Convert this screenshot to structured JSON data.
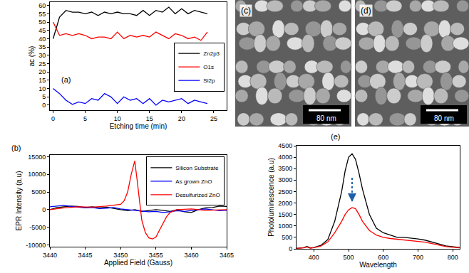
{
  "chart_data": [
    {
      "type": "line",
      "label": "(a)",
      "x_label": "Etching time (min)",
      "y_label": "ac (%)",
      "xlim": [
        -0.5,
        27
      ],
      "xticks": [
        0,
        5,
        10,
        15,
        20,
        25
      ],
      "ylim": [
        -3,
        62
      ],
      "yticks": [
        0,
        5,
        10,
        15,
        20,
        25,
        30,
        35,
        40,
        45,
        50,
        55,
        60
      ],
      "grid": false,
      "legend": "right",
      "x": [
        0,
        1,
        2,
        3,
        4,
        5,
        6,
        7,
        8,
        9,
        10,
        11,
        12,
        13,
        14,
        15,
        16,
        17,
        18,
        19,
        20,
        21,
        22,
        23,
        24
      ],
      "series": [
        {
          "name": "Zn2p3",
          "color": "#000000",
          "values": [
            40,
            53,
            57,
            56,
            56,
            55,
            56,
            54,
            56,
            55,
            56,
            55,
            55,
            54,
            57,
            54,
            57,
            56,
            59,
            55,
            58,
            55,
            57,
            56,
            55
          ]
        },
        {
          "name": "O1s",
          "color": "#ff0000",
          "values": [
            50,
            42,
            43,
            42,
            43,
            42,
            40,
            41,
            41,
            40,
            44,
            40,
            42,
            41,
            42,
            41,
            44,
            42,
            40,
            43,
            42,
            40,
            41,
            39,
            44
          ]
        },
        {
          "name": "Si2p",
          "color": "#0000ff",
          "values": [
            10,
            7,
            3,
            0.5,
            2,
            1,
            4,
            3,
            7,
            5,
            1,
            5,
            3,
            4,
            1,
            4,
            0,
            3,
            2,
            3,
            4,
            1,
            3,
            2,
            1
          ]
        }
      ]
    },
    {
      "type": "line",
      "label": "(b)",
      "x_label": "Applied Field (Gauss)",
      "y_label": "EPR Intensity (a.u)",
      "xlim": [
        3440,
        3465
      ],
      "xticks": [
        3440,
        3445,
        3450,
        3455,
        3460,
        3465
      ],
      "ylim": [
        -10500,
        15500
      ],
      "yticks": [
        -10000,
        -5000,
        0,
        5000,
        10000,
        15000
      ],
      "grid": false,
      "legend": "upper right",
      "series": [
        {
          "name": "Silicon Substrate",
          "color": "#000000",
          "x": [
            3440,
            3441,
            3442,
            3443,
            3444,
            3445,
            3446,
            3447,
            3448,
            3449,
            3450,
            3451,
            3452,
            3453,
            3454,
            3455,
            3456,
            3457,
            3458,
            3459,
            3460,
            3461,
            3462,
            3463,
            3464,
            3465
          ],
          "values": [
            0,
            600,
            800,
            1000,
            900,
            600,
            800,
            500,
            700,
            300,
            0,
            -300,
            0,
            -500,
            -300,
            0,
            -200,
            -500,
            0,
            -600,
            -800,
            0,
            500,
            600,
            1000,
            900
          ]
        },
        {
          "name": "As grown ZnO",
          "color": "#0000ff",
          "x": [
            3440,
            3441,
            3442,
            3443,
            3444,
            3445,
            3446,
            3447,
            3448,
            3449,
            3450,
            3451,
            3452,
            3453,
            3454,
            3455,
            3456,
            3457,
            3458,
            3459,
            3460,
            3461,
            3462,
            3463,
            3464,
            3465
          ],
          "values": [
            800,
            1000,
            1200,
            900,
            700,
            500,
            600,
            300,
            400,
            600,
            200,
            0,
            -200,
            -400,
            -600,
            -500,
            -800,
            -600,
            -300,
            -500,
            -200,
            0,
            200,
            0,
            -300,
            -200
          ]
        },
        {
          "name": "Desulfurized ZnO",
          "color": "#ff0000",
          "x": [
            3440,
            3442,
            3444,
            3446,
            3448,
            3449,
            3450,
            3450.5,
            3451,
            3451.5,
            3452,
            3452.3,
            3452.7,
            3453,
            3453.5,
            3454,
            3454.5,
            3455,
            3455.5,
            3456,
            3456.5,
            3457,
            3458,
            3460,
            3462,
            3465
          ],
          "values": [
            0,
            500,
            800,
            700,
            1000,
            1200,
            1500,
            2500,
            5000,
            10000,
            13800,
            9000,
            2000,
            -3000,
            -6500,
            -8000,
            -8300,
            -7800,
            -5800,
            -3800,
            -2000,
            -800,
            0,
            200,
            -200,
            0
          ]
        }
      ]
    },
    {
      "type": "image",
      "label": "(c)",
      "scale_bar": "80 nm"
    },
    {
      "type": "image",
      "label": "(d)",
      "scale_bar": "80 nm"
    },
    {
      "type": "line",
      "label": "(e)",
      "x_label": "Wavelength",
      "y_label": "Photoluminescence (a.u)",
      "xlim": [
        350,
        820
      ],
      "xticks": [
        400,
        500,
        600,
        700,
        800
      ],
      "ylim": [
        0,
        4500
      ],
      "yticks": [
        0,
        500,
        1000,
        1500,
        2000,
        2500,
        3000,
        3500,
        4000,
        4500
      ],
      "grid": false,
      "x": [
        350,
        370,
        380,
        390,
        400,
        420,
        440,
        460,
        480,
        490,
        500,
        510,
        520,
        530,
        540,
        560,
        580,
        600,
        620,
        640,
        660,
        680,
        700,
        720,
        750,
        780,
        820
      ],
      "series": [
        {
          "color": "#000000",
          "values": [
            20,
            50,
            100,
            40,
            60,
            150,
            400,
            1200,
            2500,
            3400,
            4000,
            4150,
            3900,
            3300,
            2600,
            1500,
            900,
            700,
            600,
            500,
            500,
            470,
            430,
            380,
            250,
            130,
            60
          ]
        },
        {
          "color": "#ff0000",
          "values": [
            20,
            40,
            80,
            30,
            50,
            120,
            300,
            700,
            1200,
            1500,
            1700,
            1800,
            1750,
            1500,
            1200,
            800,
            600,
            500,
            450,
            420,
            400,
            370,
            330,
            290,
            200,
            100,
            40
          ]
        }
      ],
      "arrow": {
        "x": 510,
        "y_from": 3100,
        "y_to": 2050,
        "color": "#1f5fa8",
        "line_style": "dotted"
      }
    }
  ]
}
